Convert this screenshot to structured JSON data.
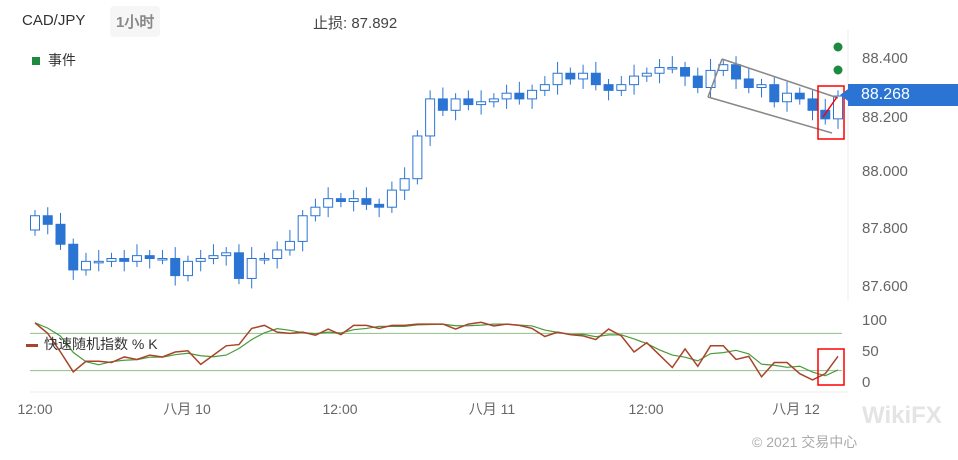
{
  "header": {
    "symbol": "CAD/JPY",
    "timeframe": "1小时",
    "stop_loss_label": "止损:",
    "stop_loss_value": "87.892"
  },
  "legend": {
    "events": "事件",
    "stoch": "快速随机指数 % K"
  },
  "current_price": "88.268",
  "footer": {
    "copyright": "© 2021 交易中心",
    "watermark": "WikiFX"
  },
  "colors": {
    "up": "#ffffff",
    "down": "#2b74d3",
    "candle_border": "#2b74d3",
    "stoch_k": "#a8442a",
    "stoch_d": "#4a9a3c",
    "event": "#1e8a3f",
    "highlight": "#ff0000"
  },
  "chart_data": [
    {
      "type": "candlestick",
      "ylim": [
        87.55,
        88.45
      ],
      "y_ticks": [
        "88.400",
        "88.200",
        "88.000",
        "87.800",
        "87.600"
      ],
      "x_ticks": [
        "12:00",
        "八月 10",
        "12:00",
        "八月 11",
        "12:00",
        "八月 12"
      ],
      "first_open": 87.8,
      "close": [
        87.85,
        87.82,
        87.75,
        87.66,
        87.69,
        87.69,
        87.7,
        87.69,
        87.71,
        87.7,
        87.7,
        87.64,
        87.69,
        87.7,
        87.71,
        87.72,
        87.63,
        87.7,
        87.7,
        87.73,
        87.76,
        87.85,
        87.88,
        87.91,
        87.9,
        87.91,
        87.89,
        87.88,
        87.94,
        87.98,
        88.13,
        88.26,
        88.22,
        88.26,
        88.24,
        88.25,
        88.26,
        88.28,
        88.26,
        88.29,
        88.31,
        88.35,
        88.33,
        88.35,
        88.31,
        88.29,
        88.31,
        88.34,
        88.35,
        88.37,
        88.37,
        88.34,
        88.3,
        88.36,
        88.38,
        88.33,
        88.3,
        88.31,
        88.25,
        88.28,
        88.26,
        88.22,
        88.19,
        88.27
      ]
    },
    {
      "type": "line",
      "name": "快速随机指数 % K",
      "ylim": [
        0,
        100
      ],
      "y_ticks": [
        "100",
        "50",
        "0"
      ],
      "levels": [
        80,
        20
      ],
      "k": [
        97,
        80,
        50,
        18,
        35,
        35,
        33,
        42,
        38,
        45,
        42,
        50,
        52,
        30,
        45,
        60,
        62,
        88,
        93,
        82,
        80,
        82,
        77,
        87,
        78,
        93,
        93,
        88,
        93,
        93,
        95,
        95,
        95,
        87,
        95,
        98,
        92,
        95,
        93,
        88,
        75,
        82,
        78,
        76,
        70,
        87,
        76,
        50,
        65,
        45,
        25,
        55,
        27,
        60,
        60,
        38,
        43,
        10,
        33,
        33,
        15,
        5,
        15,
        43
      ]
    }
  ]
}
